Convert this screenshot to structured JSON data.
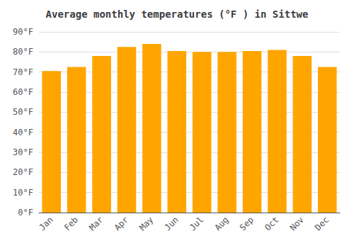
{
  "chart_data": {
    "type": "bar",
    "title": "Average monthly temperatures (°F ) in Sittwe",
    "categories": [
      "Jan",
      "Feb",
      "Mar",
      "Apr",
      "May",
      "Jun",
      "Jul",
      "Aug",
      "Sep",
      "Oct",
      "Nov",
      "Dec"
    ],
    "values": [
      70.5,
      72.5,
      78,
      82.5,
      84,
      80.5,
      80,
      80,
      80.5,
      81,
      78,
      72.5
    ],
    "color": "#FFA500",
    "ylim": [
      0,
      90
    ],
    "yticks": [
      {
        "value": 0,
        "label": "0°F"
      },
      {
        "value": 10,
        "label": "10°F"
      },
      {
        "value": 20,
        "label": "20°F"
      },
      {
        "value": 30,
        "label": "30°F"
      },
      {
        "value": 40,
        "label": "40°F"
      },
      {
        "value": 50,
        "label": "50°F"
      },
      {
        "value": 60,
        "label": "60°F"
      },
      {
        "value": 70,
        "label": "70°F"
      },
      {
        "value": 80,
        "label": "80°F"
      },
      {
        "value": 90,
        "label": "90°F"
      }
    ],
    "grid": true
  }
}
